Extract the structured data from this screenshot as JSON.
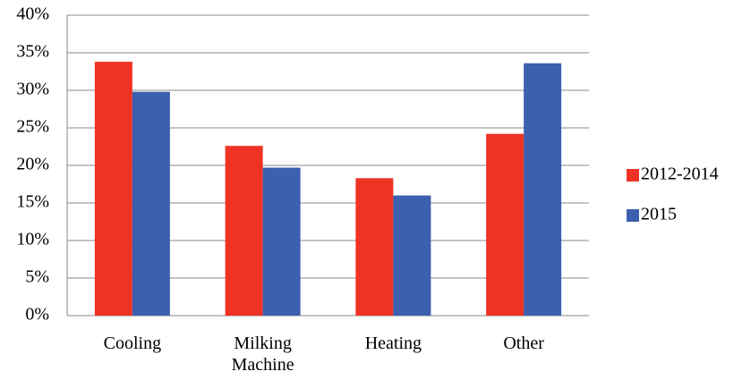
{
  "chart_data": {
    "type": "bar",
    "categories": [
      "Cooling",
      "Milking Machine",
      "Heating",
      "Other"
    ],
    "series": [
      {
        "name": "2012-2014",
        "color": "#ee3224",
        "values": [
          33.8,
          22.6,
          18.3,
          24.2
        ]
      },
      {
        "name": "2015",
        "color": "#3c5fae",
        "values": [
          29.8,
          19.7,
          16.0,
          33.6
        ]
      }
    ],
    "ylim": [
      0,
      40
    ],
    "yticks": [
      {
        "value": 0,
        "label": "0%"
      },
      {
        "value": 5,
        "label": "5%"
      },
      {
        "value": 10,
        "label": "10%"
      },
      {
        "value": 15,
        "label": "15%"
      },
      {
        "value": 20,
        "label": "20%"
      },
      {
        "value": 25,
        "label": "25%"
      },
      {
        "value": 30,
        "label": "30%"
      },
      {
        "value": 35,
        "label": "35%"
      },
      {
        "value": 40,
        "label": "40%"
      }
    ],
    "grid": true,
    "legend": "right"
  }
}
